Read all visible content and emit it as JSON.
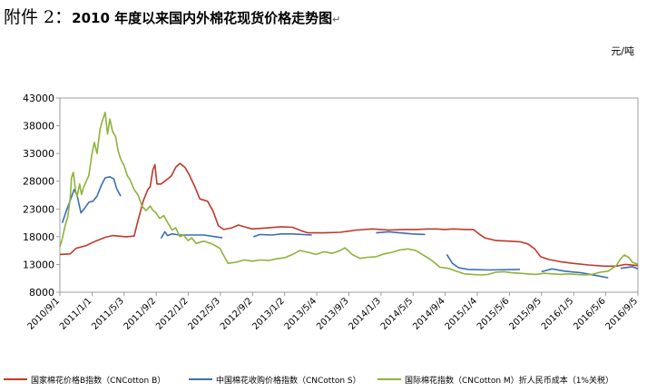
{
  "heading": {
    "prefix": "附件 2：",
    "title": "2010 年度以来国内外棉花现货价格走势图",
    "mark": "↵"
  },
  "chart_data": {
    "type": "line",
    "title": "2010 年度以来国内外棉花现货价格走势图",
    "unit": "元/吨",
    "ylim": [
      8000,
      43000
    ],
    "yticks": [
      8000,
      13000,
      18000,
      23000,
      28000,
      33000,
      38000,
      43000
    ],
    "xlim": [
      "2010-09-01",
      "2016-09-05"
    ],
    "xticks": [
      {
        "date": "2010-09-01",
        "label": "2010/9/1"
      },
      {
        "date": "2011-01-01",
        "label": "2011/1/1"
      },
      {
        "date": "2011-05-03",
        "label": "2011/5/3"
      },
      {
        "date": "2011-09-02",
        "label": "2011/9/2"
      },
      {
        "date": "2012-01-02",
        "label": "2012/1/2"
      },
      {
        "date": "2012-05-03",
        "label": "2012/5/3"
      },
      {
        "date": "2012-09-02",
        "label": "2012/9/2"
      },
      {
        "date": "2013-01-02",
        "label": "2013/1/2"
      },
      {
        "date": "2013-05-04",
        "label": "2013/5/4"
      },
      {
        "date": "2013-09-03",
        "label": "2013/9/3"
      },
      {
        "date": "2014-01-03",
        "label": "2014/1/3"
      },
      {
        "date": "2014-05-05",
        "label": "2014/5/5"
      },
      {
        "date": "2014-09-04",
        "label": "2014/9/4"
      },
      {
        "date": "2015-01-04",
        "label": "2015/1/4"
      },
      {
        "date": "2015-05-06",
        "label": "2015/5/6"
      },
      {
        "date": "2015-09-05",
        "label": "2015/9/5"
      },
      {
        "date": "2016-01-05",
        "label": "2016/1/5"
      },
      {
        "date": "2016-05-06",
        "label": "2016/5/6"
      },
      {
        "date": "2016-09-05",
        "label": "2016/9/5"
      }
    ],
    "grid": false,
    "legend_position": "bottom",
    "series": [
      {
        "name": "国家棉花价格B指数（CNCotton B）",
        "color": "#c0392b",
        "points": [
          [
            "2010-09-01",
            14800
          ],
          [
            "2010-10-10",
            14900
          ],
          [
            "2010-11-01",
            15900
          ],
          [
            "2010-12-10",
            16400
          ],
          [
            "2011-01-15",
            17200
          ],
          [
            "2011-02-20",
            17900
          ],
          [
            "2011-03-20",
            18200
          ],
          [
            "2011-05-10",
            18000
          ],
          [
            "2011-06-10",
            18100
          ],
          [
            "2011-06-25",
            21000
          ],
          [
            "2011-07-15",
            24500
          ],
          [
            "2011-08-01",
            26500
          ],
          [
            "2011-08-10",
            27000
          ],
          [
            "2011-08-20",
            30000
          ],
          [
            "2011-08-28",
            31000
          ],
          [
            "2011-09-05",
            27500
          ],
          [
            "2011-09-20",
            27500
          ],
          [
            "2011-10-10",
            28200
          ],
          [
            "2011-10-30",
            29000
          ],
          [
            "2011-11-15",
            30500
          ],
          [
            "2011-12-01",
            31200
          ],
          [
            "2011-12-20",
            30500
          ],
          [
            "2012-01-05",
            29200
          ],
          [
            "2012-01-25",
            27200
          ],
          [
            "2012-02-15",
            24800
          ],
          [
            "2012-03-15",
            24400
          ],
          [
            "2012-04-05",
            22600
          ],
          [
            "2012-04-25",
            20000
          ],
          [
            "2012-05-15",
            19300
          ],
          [
            "2012-06-15",
            19600
          ],
          [
            "2012-07-10",
            20100
          ],
          [
            "2012-08-01",
            19800
          ],
          [
            "2012-09-01",
            19400
          ],
          [
            "2012-11-01",
            19600
          ],
          [
            "2012-12-20",
            19800
          ],
          [
            "2013-02-01",
            19700
          ],
          [
            "2013-03-10",
            19000
          ],
          [
            "2013-04-01",
            18700
          ],
          [
            "2013-06-01",
            18700
          ],
          [
            "2013-08-01",
            18800
          ],
          [
            "2013-10-01",
            19200
          ],
          [
            "2013-12-01",
            19400
          ],
          [
            "2014-02-01",
            19200
          ],
          [
            "2014-04-01",
            19300
          ],
          [
            "2014-05-15",
            19300
          ],
          [
            "2014-07-01",
            19400
          ],
          [
            "2014-08-01",
            19400
          ],
          [
            "2014-09-01",
            19300
          ],
          [
            "2014-10-05",
            19400
          ],
          [
            "2014-11-20",
            19300
          ],
          [
            "2014-12-20",
            19300
          ],
          [
            "2015-01-10",
            18500
          ],
          [
            "2015-02-01",
            17800
          ],
          [
            "2015-03-15",
            17300
          ],
          [
            "2015-05-01",
            17200
          ],
          [
            "2015-06-15",
            17100
          ],
          [
            "2015-07-15",
            16700
          ],
          [
            "2015-08-10",
            15800
          ],
          [
            "2015-09-01",
            14400
          ],
          [
            "2015-10-01",
            13900
          ],
          [
            "2015-11-15",
            13500
          ],
          [
            "2016-01-01",
            13200
          ],
          [
            "2016-03-01",
            12900
          ],
          [
            "2016-05-01",
            12700
          ],
          [
            "2016-06-15",
            12700
          ],
          [
            "2016-07-20",
            13000
          ],
          [
            "2016-09-05",
            12800
          ]
        ]
      },
      {
        "name": "中国棉花收购价格指数（CNCotton S）",
        "color": "#3a6fb5",
        "segments": [
          [
            [
              "2010-09-10",
              20500
            ],
            [
              "2010-09-25",
              22600
            ],
            [
              "2010-10-10",
              24500
            ],
            [
              "2010-10-25",
              26500
            ],
            [
              "2010-11-05",
              25500
            ],
            [
              "2010-11-20",
              22300
            ],
            [
              "2010-12-05",
              23200
            ],
            [
              "2010-12-20",
              24200
            ],
            [
              "2011-01-05",
              24400
            ],
            [
              "2011-01-20",
              25300
            ],
            [
              "2011-02-05",
              27200
            ],
            [
              "2011-02-20",
              28600
            ],
            [
              "2011-03-10",
              28800
            ],
            [
              "2011-03-25",
              28400
            ],
            [
              "2011-04-05",
              26600
            ],
            [
              "2011-04-20",
              25300
            ]
          ],
          [
            [
              "2011-09-20",
              17700
            ],
            [
              "2011-10-05",
              18900
            ],
            [
              "2011-10-15",
              18200
            ],
            [
              "2011-11-01",
              18500
            ],
            [
              "2011-12-01",
              18300
            ],
            [
              "2012-01-15",
              18300
            ],
            [
              "2012-03-01",
              18300
            ],
            [
              "2012-04-15",
              18000
            ],
            [
              "2012-05-10",
              17800
            ]
          ],
          [
            [
              "2012-09-05",
              18000
            ],
            [
              "2012-10-01",
              18400
            ],
            [
              "2012-11-15",
              18300
            ],
            [
              "2012-12-20",
              18500
            ],
            [
              "2013-02-01",
              18500
            ],
            [
              "2013-04-15",
              18300
            ]
          ],
          [
            [
              "2013-12-15",
              18700
            ],
            [
              "2014-02-01",
              18900
            ],
            [
              "2014-03-15",
              18700
            ],
            [
              "2014-05-01",
              18500
            ],
            [
              "2014-06-20",
              18400
            ]
          ],
          [
            [
              "2014-09-10",
              14800
            ],
            [
              "2014-10-01",
              13200
            ],
            [
              "2014-10-25",
              12400
            ],
            [
              "2014-12-01",
              12100
            ],
            [
              "2015-02-15",
              12000
            ],
            [
              "2015-06-15",
              12100
            ]
          ],
          [
            [
              "2015-09-05",
              11700
            ],
            [
              "2015-10-15",
              12200
            ],
            [
              "2015-12-01",
              11800
            ],
            [
              "2016-02-01",
              11500
            ],
            [
              "2016-04-01",
              11000
            ],
            [
              "2016-05-15",
              10600
            ]
          ],
          [
            [
              "2016-07-01",
              12300
            ],
            [
              "2016-08-15",
              12600
            ],
            [
              "2016-09-05",
              12200
            ]
          ]
        ]
      },
      {
        "name": "国际棉花指数（CNCotton M）折人民币成本（1%关税）",
        "color": "#8db33a",
        "points": [
          [
            "2010-09-01",
            16200
          ],
          [
            "2010-09-10",
            17600
          ],
          [
            "2010-09-20",
            19800
          ],
          [
            "2010-10-01",
            21600
          ],
          [
            "2010-10-10",
            24800
          ],
          [
            "2010-10-15",
            28600
          ],
          [
            "2010-10-22",
            29600
          ],
          [
            "2010-10-30",
            26500
          ],
          [
            "2010-11-05",
            25200
          ],
          [
            "2010-11-15",
            27500
          ],
          [
            "2010-11-22",
            25600
          ],
          [
            "2010-12-01",
            27000
          ],
          [
            "2010-12-10",
            28000
          ],
          [
            "2010-12-20",
            29000
          ],
          [
            "2011-01-01",
            33000
          ],
          [
            "2011-01-10",
            35000
          ],
          [
            "2011-01-20",
            33000
          ],
          [
            "2011-02-01",
            37500
          ],
          [
            "2011-02-10",
            39000
          ],
          [
            "2011-02-20",
            40400
          ],
          [
            "2011-03-01",
            36500
          ],
          [
            "2011-03-10",
            39200
          ],
          [
            "2011-03-20",
            37000
          ],
          [
            "2011-04-01",
            36000
          ],
          [
            "2011-04-10",
            33500
          ],
          [
            "2011-04-20",
            32000
          ],
          [
            "2011-05-03",
            30800
          ],
          [
            "2011-05-15",
            29000
          ],
          [
            "2011-05-25",
            28300
          ],
          [
            "2011-06-10",
            26500
          ],
          [
            "2011-06-25",
            25500
          ],
          [
            "2011-07-10",
            23500
          ],
          [
            "2011-07-25",
            22700
          ],
          [
            "2011-08-10",
            23500
          ],
          [
            "2011-08-20",
            22800
          ],
          [
            "2011-09-01",
            22300
          ],
          [
            "2011-09-15",
            21300
          ],
          [
            "2011-10-01",
            21800
          ],
          [
            "2011-10-15",
            20600
          ],
          [
            "2011-11-01",
            19200
          ],
          [
            "2011-11-15",
            19600
          ],
          [
            "2011-12-01",
            18000
          ],
          [
            "2011-12-15",
            18300
          ],
          [
            "2012-01-01",
            17300
          ],
          [
            "2012-01-15",
            17800
          ],
          [
            "2012-02-01",
            16800
          ],
          [
            "2012-03-01",
            17200
          ],
          [
            "2012-04-01",
            16700
          ],
          [
            "2012-05-01",
            15900
          ],
          [
            "2012-05-20",
            14200
          ],
          [
            "2012-06-01",
            13200
          ],
          [
            "2012-07-01",
            13400
          ],
          [
            "2012-08-01",
            13800
          ],
          [
            "2012-09-01",
            13600
          ],
          [
            "2012-10-01",
            13800
          ],
          [
            "2012-11-01",
            13700
          ],
          [
            "2012-12-01",
            14000
          ],
          [
            "2013-01-01",
            14200
          ],
          [
            "2013-02-01",
            14800
          ],
          [
            "2013-03-01",
            15500
          ],
          [
            "2013-04-01",
            15200
          ],
          [
            "2013-05-01",
            14800
          ],
          [
            "2013-06-01",
            15300
          ],
          [
            "2013-07-01",
            15000
          ],
          [
            "2013-08-01",
            15500
          ],
          [
            "2013-08-20",
            16000
          ],
          [
            "2013-09-15",
            14800
          ],
          [
            "2013-10-15",
            14100
          ],
          [
            "2013-11-15",
            14300
          ],
          [
            "2013-12-15",
            14400
          ],
          [
            "2014-01-15",
            14900
          ],
          [
            "2014-02-15",
            15200
          ],
          [
            "2014-03-15",
            15600
          ],
          [
            "2014-04-15",
            15800
          ],
          [
            "2014-05-15",
            15500
          ],
          [
            "2014-06-15",
            14600
          ],
          [
            "2014-07-15",
            13700
          ],
          [
            "2014-08-15",
            12500
          ],
          [
            "2014-09-15",
            12300
          ],
          [
            "2014-10-15",
            11800
          ],
          [
            "2014-11-15",
            11300
          ],
          [
            "2014-12-15",
            11200
          ],
          [
            "2015-01-15",
            11100
          ],
          [
            "2015-02-15",
            11200
          ],
          [
            "2015-03-15",
            11600
          ],
          [
            "2015-04-15",
            11700
          ],
          [
            "2015-05-15",
            11500
          ],
          [
            "2015-06-15",
            11400
          ],
          [
            "2015-07-15",
            11300
          ],
          [
            "2015-08-15",
            11200
          ],
          [
            "2015-09-15",
            11400
          ],
          [
            "2015-10-15",
            11300
          ],
          [
            "2015-11-15",
            11200
          ],
          [
            "2015-12-15",
            11300
          ],
          [
            "2016-01-15",
            11200
          ],
          [
            "2016-02-15",
            11100
          ],
          [
            "2016-03-15",
            11200
          ],
          [
            "2016-04-15",
            11600
          ],
          [
            "2016-05-15",
            11800
          ],
          [
            "2016-06-15",
            12800
          ],
          [
            "2016-07-01",
            14000
          ],
          [
            "2016-07-15",
            14700
          ],
          [
            "2016-08-01",
            14300
          ],
          [
            "2016-08-15",
            13400
          ],
          [
            "2016-09-05",
            13000
          ]
        ]
      }
    ]
  }
}
